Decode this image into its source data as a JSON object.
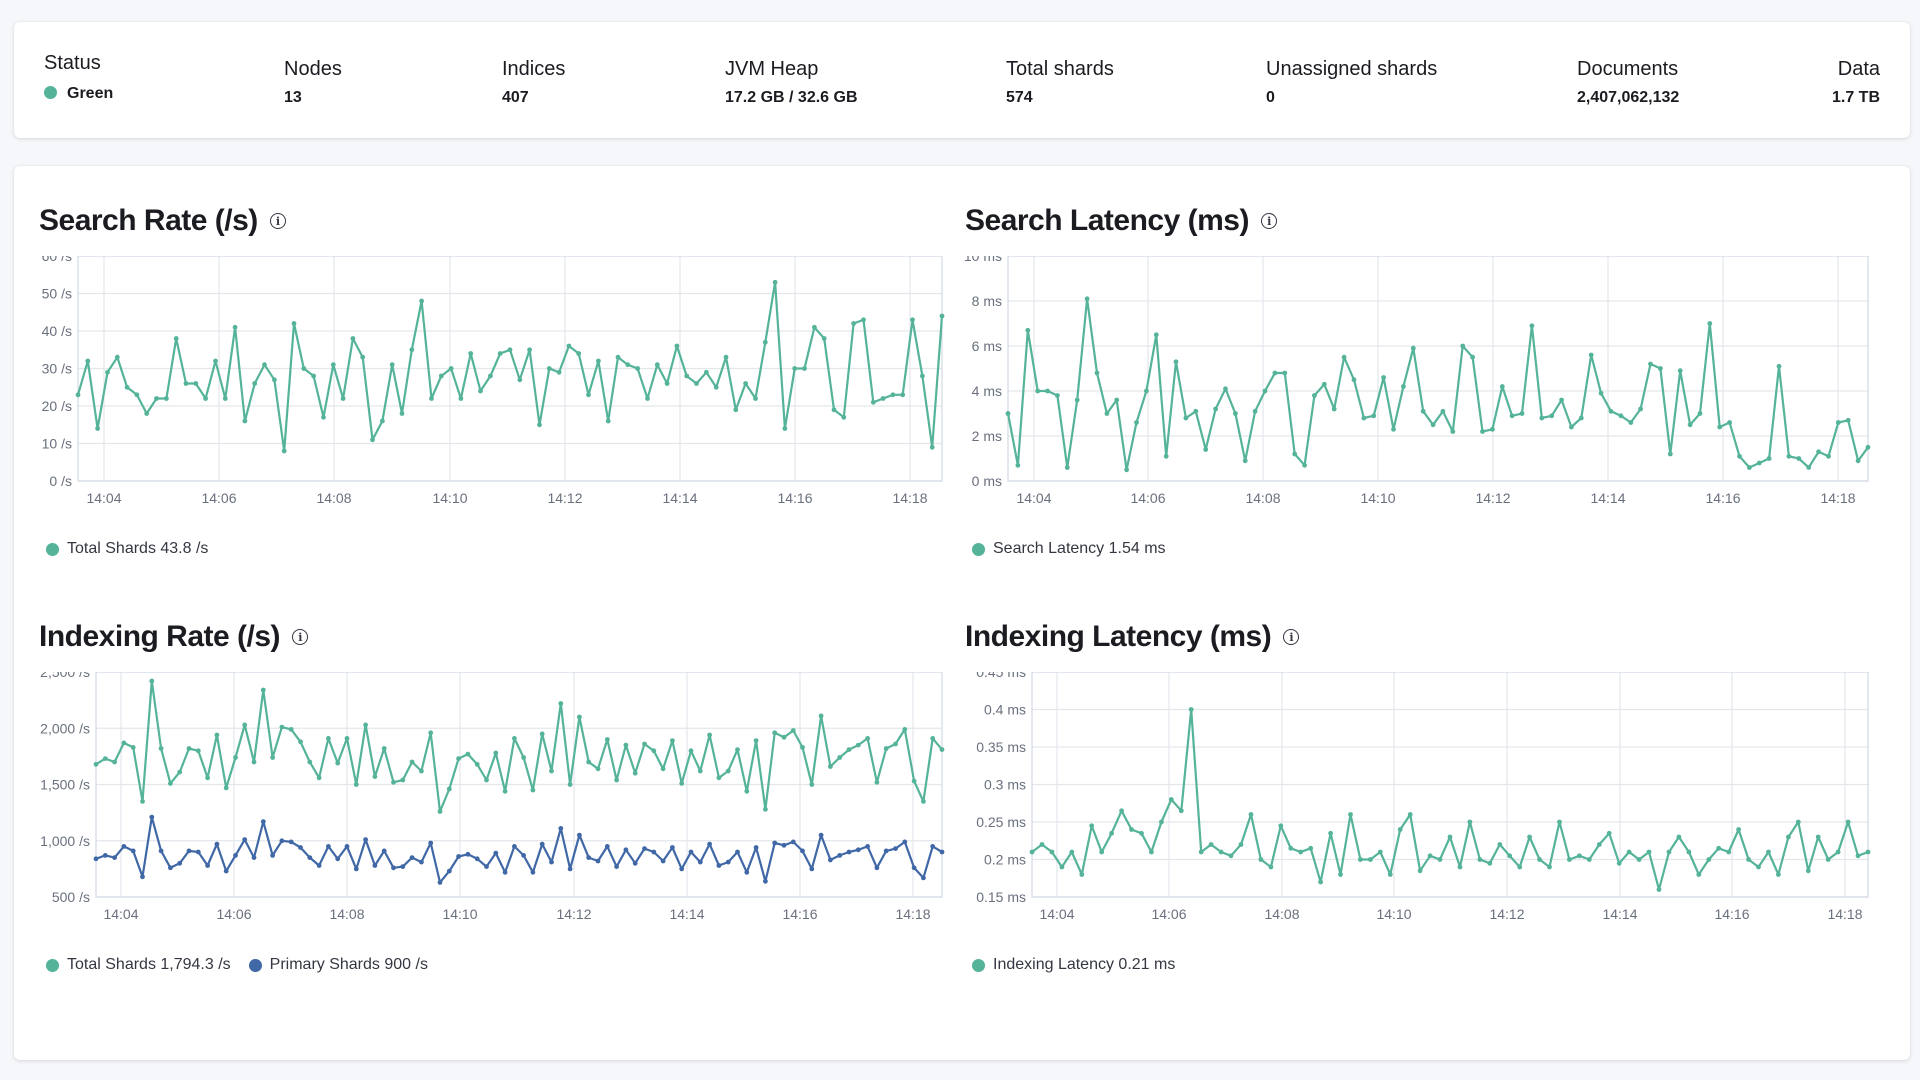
{
  "colors": {
    "green": "#54b399",
    "blue": "#4068a6",
    "grid": "#e3e6eb",
    "axis": "#d3dae6",
    "tick": "#69707d"
  },
  "summary": {
    "status": {
      "label": "Status",
      "value": "Green"
    },
    "nodes": {
      "label": "Nodes",
      "value": "13"
    },
    "indices": {
      "label": "Indices",
      "value": "407"
    },
    "jvm_heap": {
      "label": "JVM Heap",
      "value": "17.2 GB / 32.6 GB"
    },
    "total_shards": {
      "label": "Total shards",
      "value": "574"
    },
    "unassigned_shards": {
      "label": "Unassigned shards",
      "value": "0"
    },
    "documents": {
      "label": "Documents",
      "value": "2,407,062,132"
    },
    "data": {
      "label": "Data",
      "value": "1.7 TB"
    }
  },
  "charts": {
    "search_rate": {
      "title": "Search Rate (/s)",
      "legend": [
        "Total Shards 43.8 /s"
      ]
    },
    "search_latency": {
      "title": "Search Latency (ms)",
      "legend": [
        "Search Latency 1.54 ms"
      ]
    },
    "indexing_rate": {
      "title": "Indexing Rate (/s)",
      "legend": [
        "Total Shards 1,794.3 /s",
        "Primary Shards 900 /s"
      ]
    },
    "indexing_latency": {
      "title": "Indexing Latency (ms)",
      "legend": [
        "Indexing Latency 0.21 ms"
      ]
    }
  },
  "chart_data": [
    {
      "type": "line",
      "title": "Search Rate (/s)",
      "ylim": [
        0,
        60
      ],
      "yticks": [
        "0 /s",
        "10 /s",
        "20 /s",
        "30 /s",
        "40 /s",
        "50 /s",
        "60 /s"
      ],
      "xticks": [
        "14:04",
        "14:06",
        "14:08",
        "14:10",
        "14:12",
        "14:14",
        "14:16",
        "14:18"
      ],
      "series": [
        {
          "name": "Total Shards",
          "color": "#54b399",
          "values": [
            23,
            32,
            14,
            29,
            33,
            25,
            23,
            18,
            22,
            22,
            38,
            26,
            26,
            22,
            32,
            22,
            41,
            16,
            26,
            31,
            27,
            8,
            42,
            30,
            28,
            17,
            31,
            22,
            38,
            33,
            11,
            16,
            31,
            18,
            35,
            48,
            22,
            28,
            30,
            22,
            34,
            24,
            28,
            34,
            35,
            27,
            35,
            15,
            30,
            29,
            36,
            34,
            23,
            32,
            16,
            33,
            31,
            30,
            22,
            31,
            26,
            36,
            28,
            26,
            29,
            25,
            33,
            19,
            26,
            22,
            37,
            53,
            14,
            30,
            30,
            41,
            38,
            19,
            17,
            42,
            43,
            21,
            22,
            23,
            23,
            43,
            28,
            9,
            44
          ]
        }
      ]
    },
    {
      "type": "line",
      "title": "Search Latency (ms)",
      "ylim": [
        0,
        10
      ],
      "yticks": [
        "0 ms",
        "2 ms",
        "4 ms",
        "6 ms",
        "8 ms",
        "10 ms"
      ],
      "xticks": [
        "14:04",
        "14:06",
        "14:08",
        "14:10",
        "14:12",
        "14:14",
        "14:16",
        "14:18"
      ],
      "series": [
        {
          "name": "Search Latency",
          "color": "#54b399",
          "values": [
            3.0,
            0.7,
            6.7,
            4.0,
            4.0,
            3.8,
            0.6,
            3.6,
            8.1,
            4.8,
            3.0,
            3.6,
            0.5,
            2.6,
            4.0,
            6.5,
            1.1,
            5.3,
            2.8,
            3.1,
            1.4,
            3.2,
            4.1,
            3.0,
            0.9,
            3.1,
            4.0,
            4.8,
            4.8,
            1.2,
            0.7,
            3.8,
            4.3,
            3.2,
            5.5,
            4.5,
            2.8,
            2.9,
            4.6,
            2.3,
            4.2,
            5.9,
            3.1,
            2.5,
            3.1,
            2.2,
            6.0,
            5.5,
            2.2,
            2.3,
            4.2,
            2.9,
            3.0,
            6.9,
            2.8,
            2.9,
            3.6,
            2.4,
            2.8,
            5.6,
            3.9,
            3.1,
            2.9,
            2.6,
            3.2,
            5.2,
            5.0,
            1.2,
            4.9,
            2.5,
            3.0,
            7.0,
            2.4,
            2.6,
            1.1,
            0.6,
            0.8,
            1.0,
            5.1,
            1.1,
            1.0,
            0.6,
            1.3,
            1.1,
            2.6,
            2.7,
            0.9,
            1.5
          ]
        }
      ]
    },
    {
      "type": "line",
      "title": "Indexing Rate (/s)",
      "ylim": [
        500,
        2500
      ],
      "yticks": [
        "500 /s",
        "1,000 /s",
        "1,500 /s",
        "2,000 /s",
        "2,500 /s"
      ],
      "xticks": [
        "14:04",
        "14:06",
        "14:08",
        "14:10",
        "14:12",
        "14:14",
        "14:16",
        "14:18"
      ],
      "series": [
        {
          "name": "Total Shards",
          "color": "#54b399",
          "values": [
            1680,
            1730,
            1700,
            1870,
            1830,
            1350,
            2420,
            1820,
            1510,
            1610,
            1820,
            1800,
            1560,
            1940,
            1470,
            1740,
            2030,
            1700,
            2340,
            1740,
            2010,
            1990,
            1880,
            1700,
            1560,
            1910,
            1690,
            1910,
            1500,
            2030,
            1570,
            1820,
            1520,
            1540,
            1700,
            1620,
            1960,
            1260,
            1460,
            1730,
            1770,
            1680,
            1540,
            1780,
            1440,
            1910,
            1740,
            1450,
            1950,
            1620,
            2220,
            1500,
            2100,
            1700,
            1640,
            1900,
            1540,
            1850,
            1600,
            1860,
            1800,
            1640,
            1890,
            1510,
            1800,
            1620,
            1940,
            1560,
            1620,
            1810,
            1440,
            1890,
            1280,
            1960,
            1920,
            1980,
            1830,
            1500,
            2110,
            1660,
            1740,
            1810,
            1850,
            1910,
            1520,
            1820,
            1860,
            1990,
            1530,
            1350,
            1910,
            1810
          ]
        },
        {
          "name": "Primary Shards",
          "color": "#4068a6",
          "values": [
            840,
            870,
            850,
            950,
            910,
            680,
            1210,
            910,
            760,
            800,
            910,
            900,
            780,
            970,
            730,
            870,
            1010,
            850,
            1170,
            870,
            1000,
            990,
            940,
            850,
            780,
            950,
            840,
            950,
            750,
            1010,
            780,
            910,
            760,
            770,
            850,
            810,
            980,
            630,
            730,
            860,
            880,
            840,
            770,
            890,
            720,
            950,
            870,
            720,
            970,
            810,
            1110,
            750,
            1050,
            850,
            820,
            950,
            770,
            920,
            800,
            930,
            900,
            820,
            940,
            750,
            900,
            810,
            970,
            780,
            810,
            900,
            720,
            940,
            640,
            980,
            960,
            990,
            910,
            750,
            1050,
            830,
            870,
            900,
            920,
            950,
            760,
            910,
            930,
            990,
            760,
            670,
            950,
            900
          ]
        }
      ]
    },
    {
      "type": "line",
      "title": "Indexing Latency (ms)",
      "ylim": [
        0.15,
        0.45
      ],
      "yticks": [
        "0.15 ms",
        "0.2 ms",
        "0.25 ms",
        "0.3 ms",
        "0.35 ms",
        "0.4 ms",
        "0.45 ms"
      ],
      "xticks": [
        "14:04",
        "14:06",
        "14:08",
        "14:10",
        "14:12",
        "14:14",
        "14:16",
        "14:18"
      ],
      "series": [
        {
          "name": "Indexing Latency",
          "color": "#54b399",
          "values": [
            0.21,
            0.22,
            0.21,
            0.19,
            0.21,
            0.18,
            0.245,
            0.21,
            0.235,
            0.265,
            0.24,
            0.235,
            0.21,
            0.25,
            0.28,
            0.265,
            0.4,
            0.21,
            0.22,
            0.21,
            0.205,
            0.22,
            0.26,
            0.2,
            0.19,
            0.245,
            0.215,
            0.21,
            0.215,
            0.17,
            0.235,
            0.18,
            0.26,
            0.2,
            0.2,
            0.21,
            0.18,
            0.24,
            0.26,
            0.185,
            0.205,
            0.2,
            0.23,
            0.19,
            0.25,
            0.2,
            0.195,
            0.22,
            0.205,
            0.19,
            0.23,
            0.2,
            0.19,
            0.25,
            0.2,
            0.205,
            0.2,
            0.22,
            0.235,
            0.195,
            0.21,
            0.2,
            0.21,
            0.16,
            0.21,
            0.23,
            0.21,
            0.18,
            0.2,
            0.215,
            0.21,
            0.24,
            0.2,
            0.19,
            0.21,
            0.18,
            0.23,
            0.25,
            0.185,
            0.23,
            0.2,
            0.21,
            0.25,
            0.205,
            0.21
          ]
        }
      ]
    }
  ]
}
